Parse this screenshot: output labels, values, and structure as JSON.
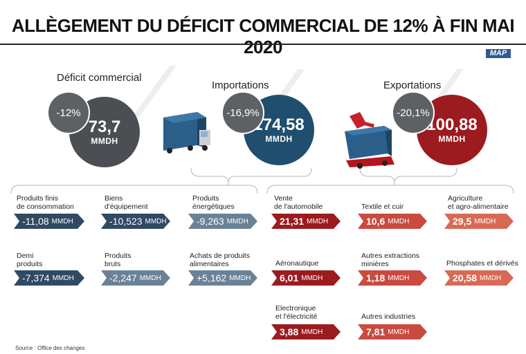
{
  "title": "ALLÈGEMENT DU DÉFICIT COMMERCIAL DE 12% À FIN MAI 2020",
  "logo": "MAP",
  "deficit": {
    "label": "Déficit commercial",
    "pct": "-12%",
    "value": "73,7",
    "unit": "MMDH"
  },
  "imports": {
    "label": "Importations",
    "pct": "-16,9%",
    "value": "174,58",
    "unit": "MMDH"
  },
  "exports": {
    "label": "Exportations",
    "pct": "-20,1%",
    "value": "100,88",
    "unit": "MMDH"
  },
  "import_items": [
    {
      "label": "Produits finis\nde consommation",
      "value": "-11,08",
      "unit": "MMDH"
    },
    {
      "label": "Biens\nd'équipement",
      "value": "-10,523",
      "unit": "MMDH"
    },
    {
      "label": "Produits\nénergétiques",
      "value": "-9,263",
      "unit": "MMDH"
    },
    {
      "label": "Demi\nproduits",
      "value": "-7,374",
      "unit": "MMDH"
    },
    {
      "label": "Produits\nbruts",
      "value": "-2,247",
      "unit": "MMDH"
    },
    {
      "label": "Achats de produits\nalimentaires",
      "value": "+5,162",
      "unit": "MMDH"
    }
  ],
  "export_items": [
    {
      "label": "Vente\nde l'automobile",
      "value": "21,31",
      "unit": "MMDH"
    },
    {
      "label": "Textile et cuir",
      "value": "10,6",
      "unit": "MMDH"
    },
    {
      "label": "Agriculture\net agro-alimentaire",
      "value": "29,5",
      "unit": "MMDH"
    },
    {
      "label": "Aéronautique",
      "value": "6,01",
      "unit": "MMDH"
    },
    {
      "label": "Autres extractions\nminières",
      "value": "1,18",
      "unit": "MMDH"
    },
    {
      "label": "Phosphates et dérivés",
      "value": "20,58",
      "unit": "MMDH"
    },
    {
      "label": "Electronique\net l'électricité",
      "value": "3,88",
      "unit": "MMDH"
    },
    {
      "label": "Autres industries",
      "value": "7,81",
      "unit": "MMDH"
    }
  ],
  "source": "Source : Office des changes",
  "colors": {
    "deficit": "#4b4f54",
    "imports": "#1f4e6e",
    "exports": "#9b1b1f",
    "pct_circle": "#5d6166"
  }
}
